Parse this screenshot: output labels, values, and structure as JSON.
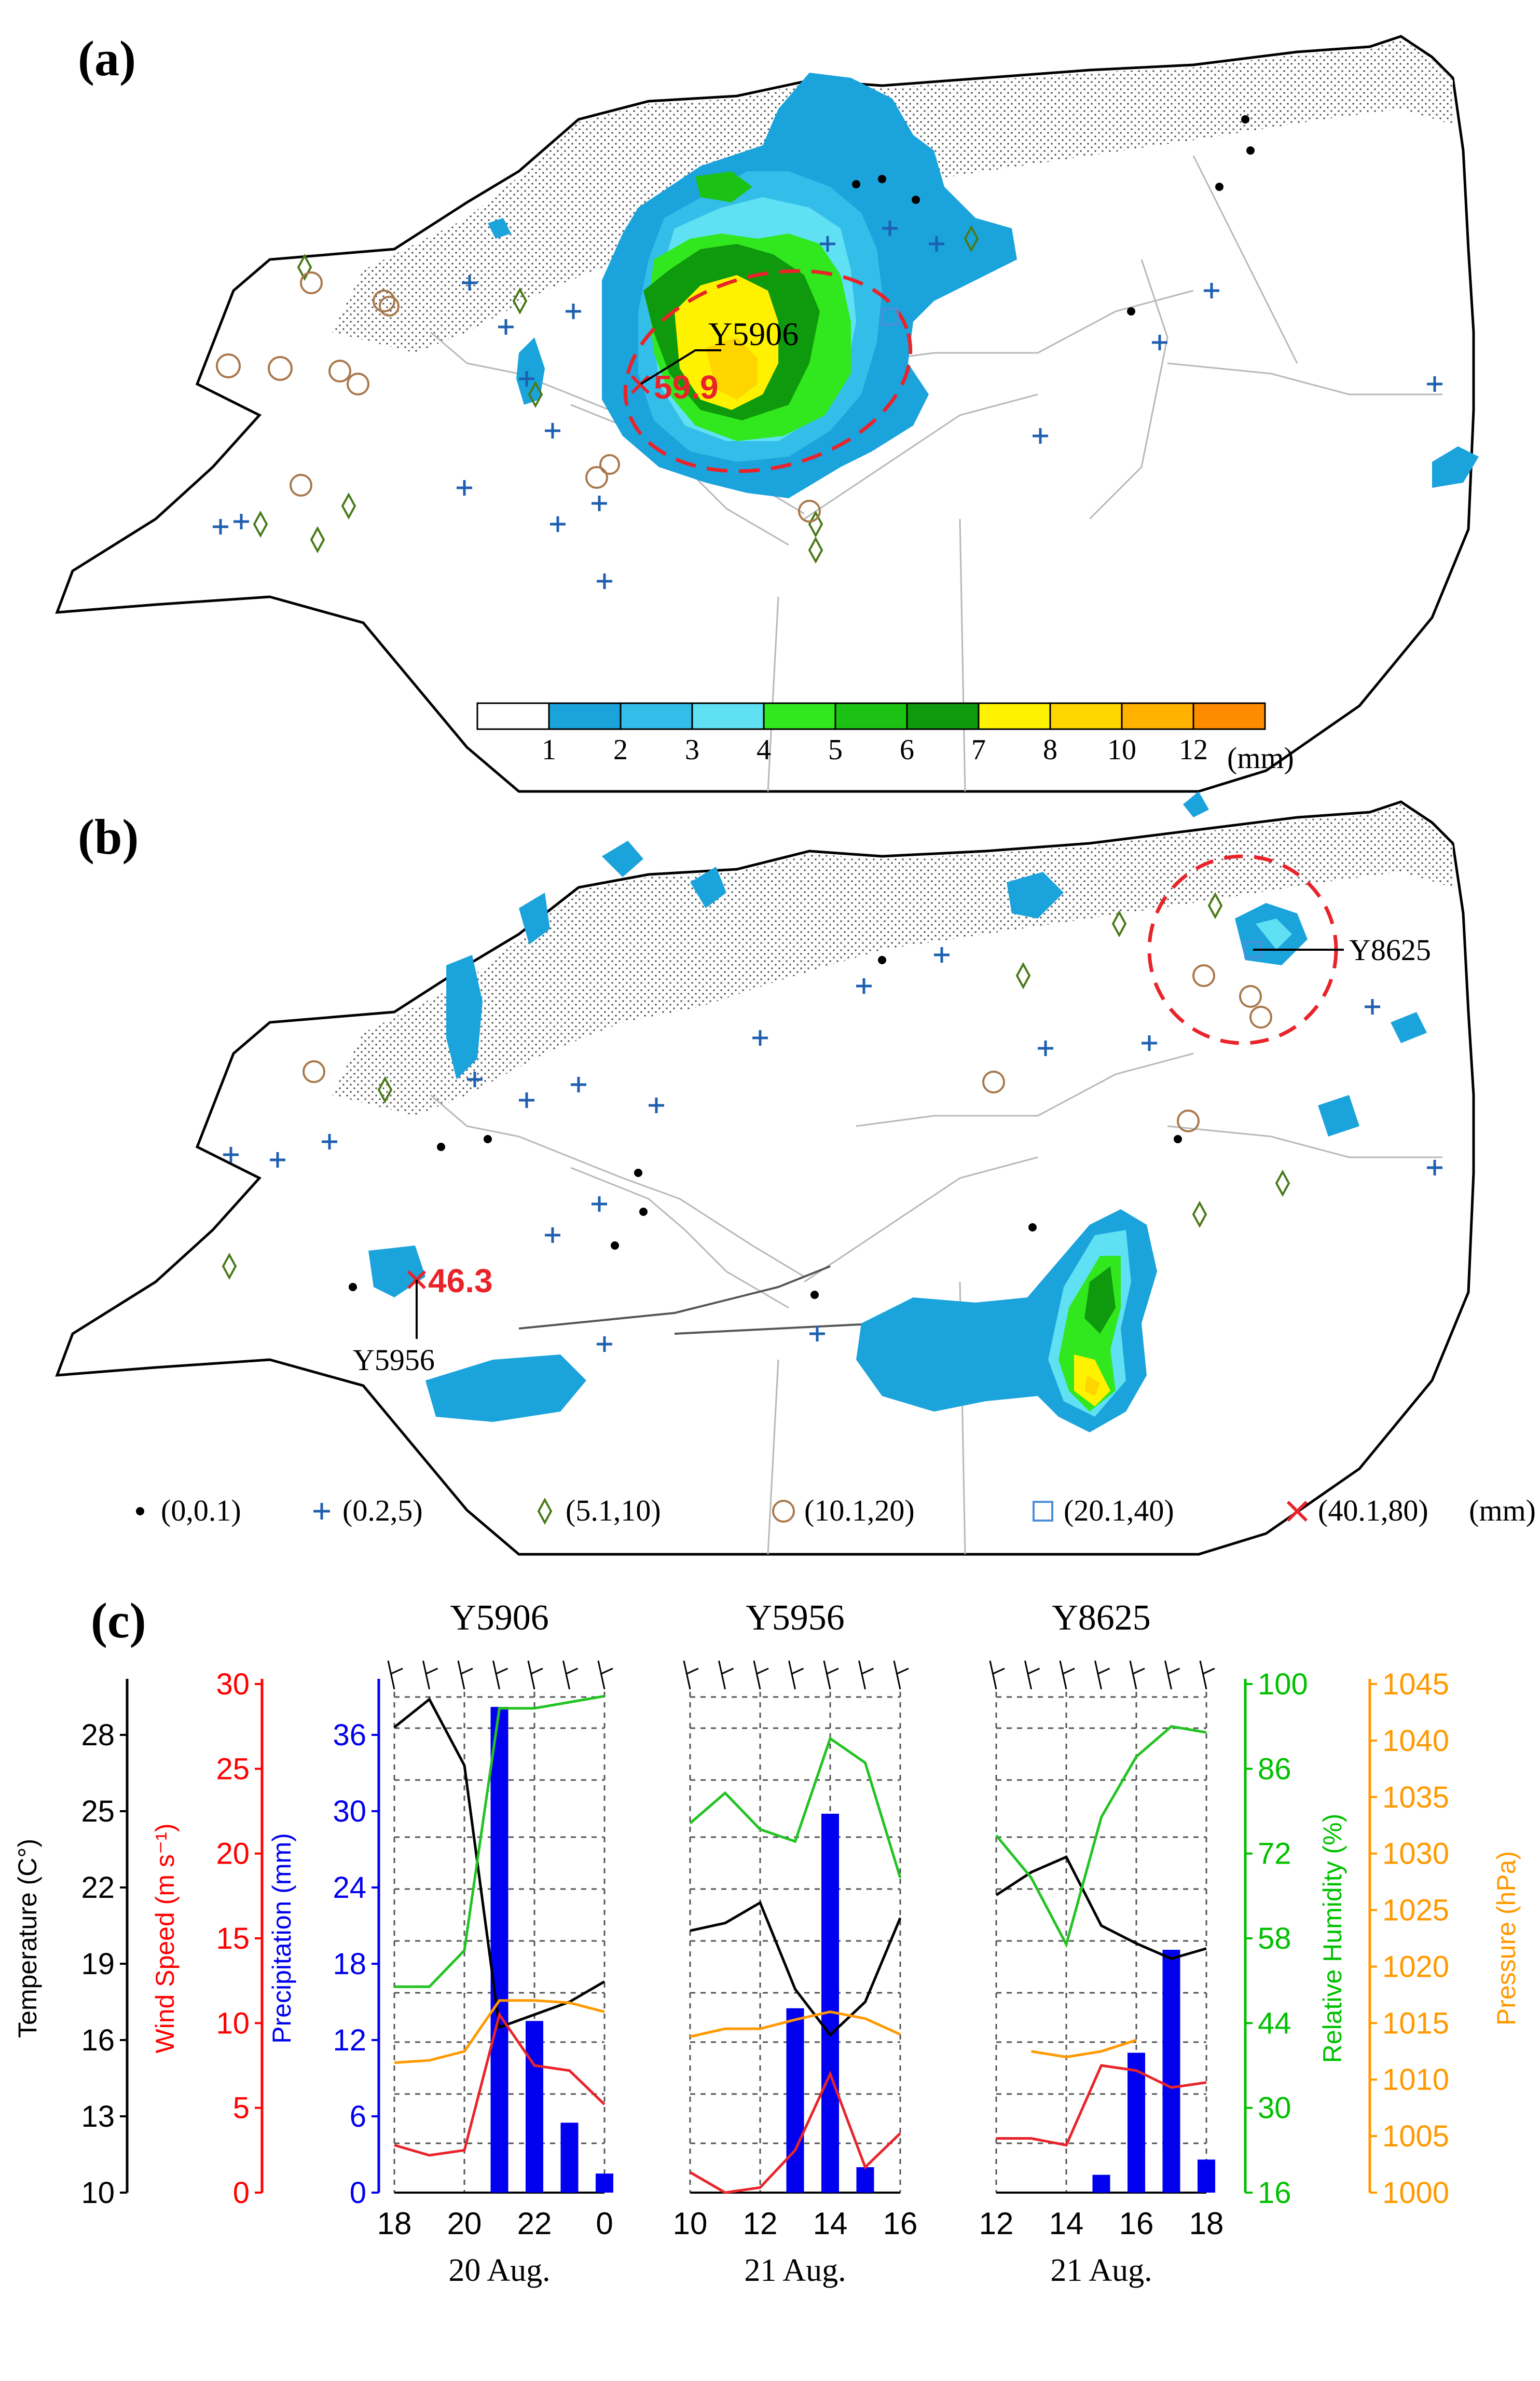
{
  "panels": {
    "a": {
      "label": "(a)",
      "station": "Y5906",
      "max_value": "59.9"
    },
    "b": {
      "label": "(b)",
      "station_max": "Y5956",
      "max_value": "46.3",
      "station_circle": "Y8625"
    }
  },
  "colorbar": {
    "ticks": [
      "1",
      "2",
      "3",
      "4",
      "5",
      "6",
      "7",
      "8",
      "10",
      "12"
    ],
    "unit": "(mm)",
    "colors": [
      "#ffffff",
      "#1ba3dc",
      "#33bde9",
      "#5fe0f3",
      "#31e81e",
      "#1cc213",
      "#0f9a0d",
      "#fff200",
      "#ffd500",
      "#ffb200",
      "#ff8c00"
    ]
  },
  "legend": {
    "items": [
      "(0,0.1)",
      "(0.2,5)",
      "(5.1,10)",
      "(10.1,20)",
      "(20.1,40)",
      "(40.1,80)"
    ],
    "unit": "(mm)"
  },
  "chart_data": {
    "type": "line",
    "axes": {
      "temperature": {
        "label": "Temperature (C°)",
        "ticks": [
          "10",
          "13",
          "16",
          "19",
          "22",
          "25",
          "28"
        ],
        "range": [
          10,
          30
        ],
        "color": "#000000"
      },
      "wind": {
        "label": "Wind Speed (m s⁻¹)",
        "ticks": [
          "0",
          "5",
          "10",
          "15",
          "20",
          "25",
          "30"
        ],
        "range": [
          0,
          30
        ],
        "color": "#ff0000"
      },
      "precip": {
        "label": "Precipitation (mm)",
        "ticks": [
          "0",
          "6",
          "12",
          "18",
          "24",
          "30",
          "36"
        ],
        "range": [
          0,
          40
        ],
        "color": "#0000ee"
      },
      "rh": {
        "label": "Relative Humidity (%)",
        "ticks": [
          "16",
          "30",
          "44",
          "58",
          "72",
          "86",
          "100"
        ],
        "range": [
          16,
          100
        ],
        "color": "#00c000"
      },
      "pressure": {
        "label": "Pressure (hPa)",
        "ticks": [
          "1000",
          "1005",
          "1010",
          "1015",
          "1020",
          "1025",
          "1030",
          "1035",
          "1040",
          "1045"
        ],
        "range": [
          1000,
          1045
        ],
        "color": "#ff9900"
      }
    },
    "stations": [
      {
        "title": "Y5906",
        "date": "20 Aug.",
        "xticks": [
          "18",
          "20",
          "22",
          "0"
        ],
        "x": [
          18,
          19,
          20,
          21,
          22,
          23,
          24
        ],
        "precip": [
          0,
          0,
          0,
          38.2,
          13.5,
          5.5,
          1.5
        ],
        "temperature": [
          28.3,
          29.4,
          26.8,
          16.5,
          17,
          17.5,
          18.3
        ],
        "wind": [
          2.8,
          2.2,
          2.5,
          10.5,
          7.5,
          7.2,
          5.2
        ],
        "rh": [
          50,
          50,
          56,
          96,
          96,
          97,
          98
        ],
        "pressure": [
          1011.5,
          1011.7,
          1012.5,
          1017,
          1017,
          1016.8,
          1016
        ]
      },
      {
        "title": "Y5956",
        "date": "21 Aug.",
        "xticks": [
          "10",
          "12",
          "14",
          "16"
        ],
        "x": [
          10,
          11,
          12,
          13,
          14,
          15,
          16
        ],
        "precip": [
          0,
          0,
          0,
          14.5,
          29.8,
          2,
          0
        ],
        "temperature": [
          20.3,
          20.6,
          21.4,
          18,
          16.2,
          17.5,
          20.8
        ],
        "wind": [
          1.2,
          0,
          0.3,
          2.5,
          7,
          1.5,
          3.5
        ],
        "rh": [
          77,
          82,
          76,
          74,
          91,
          87,
          68
        ],
        "pressure": [
          1013.8,
          1014.5,
          1014.5,
          1015.3,
          1016,
          1015.4,
          1014
        ]
      },
      {
        "title": "Y8625",
        "date": "21 Aug.",
        "xticks": [
          "12",
          "14",
          "16",
          "18"
        ],
        "x": [
          12,
          13,
          14,
          15,
          16,
          17,
          18
        ],
        "precip": [
          0,
          0,
          0,
          1.4,
          11,
          19.1,
          2.6
        ],
        "temperature": [
          21.7,
          22.6,
          23.2,
          20.5,
          19.8,
          19.2,
          19.6
        ],
        "wind": [
          3.2,
          3.2,
          2.8,
          7.5,
          7.2,
          6.2,
          6.5
        ],
        "rh": [
          75,
          68,
          57,
          78,
          88,
          93,
          92
        ],
        "pressure": [
          null,
          1012.5,
          1012,
          1012.5,
          1013.5,
          null,
          null
        ]
      }
    ],
    "panel_label": "(c)"
  }
}
